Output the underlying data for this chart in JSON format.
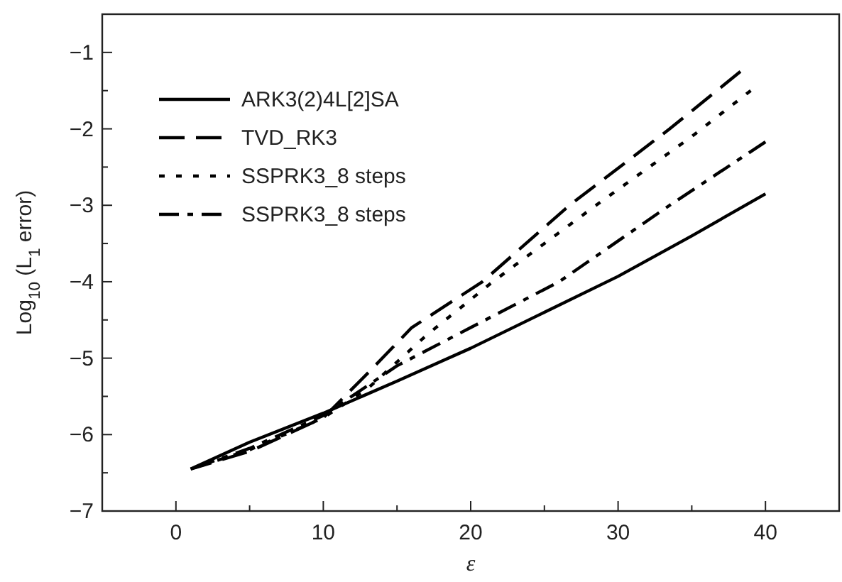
{
  "chart_data": {
    "type": "line",
    "xlabel": "ε",
    "ylabel": "Log$_{10}$ (L$_{1}$ error)",
    "xlim": [
      -5,
      45
    ],
    "ylim": [
      -7,
      -0.5
    ],
    "xticks": [
      0,
      {
        "value": 5,
        "label": null
      },
      10,
      {
        "value": 15,
        "label": null
      },
      20,
      {
        "value": 25,
        "label": null
      },
      30,
      {
        "value": 35,
        "label": null
      },
      40
    ],
    "yticks": [
      -7,
      {
        "value": -6.5,
        "label": null
      },
      -6,
      {
        "value": -5.5,
        "label": null
      },
      -5,
      {
        "value": -4.5,
        "label": null
      },
      -4,
      {
        "value": -3.5,
        "label": null
      },
      -3,
      {
        "value": -2.5,
        "label": null
      },
      -2,
      {
        "value": -1.5,
        "label": null
      },
      -1
    ],
    "grid": false,
    "legend": "top left",
    "series": [
      {
        "name": "ARK3(2)4L[2]SA",
        "color": "#000000",
        "line_style": "solid",
        "x": [
          1,
          5,
          10,
          15,
          20,
          25,
          30,
          35,
          40
        ],
        "values": [
          -6.45,
          -6.1,
          -5.72,
          -5.3,
          -4.87,
          -4.4,
          -3.93,
          -3.4,
          -2.85
        ]
      },
      {
        "name": "TVD_RK3",
        "color": "#000000",
        "line_style": "dashed",
        "x": [
          1,
          5,
          10,
          13,
          16,
          20.8,
          26.7,
          33.5,
          38.3
        ],
        "values": [
          -6.45,
          -6.22,
          -5.78,
          -5.2,
          -4.6,
          -4,
          -3,
          -2,
          -1.25
        ]
      },
      {
        "name": "SSPRK3_8 steps",
        "color": "#000000",
        "line_style": "dotted",
        "x": [
          1,
          5,
          10,
          13,
          17,
          21.5,
          28.5,
          35,
          39
        ],
        "values": [
          -6.45,
          -6.2,
          -5.78,
          -5.4,
          -4.7,
          -4,
          -3,
          -2.1,
          -1.5
        ]
      },
      {
        "name": "SSPRK3_8 steps",
        "color": "#000000",
        "line_style": "dashdot",
        "x": [
          1,
          5,
          10,
          15,
          20,
          26,
          33.5,
          40
        ],
        "values": [
          -6.45,
          -6.18,
          -5.75,
          -5.1,
          -4.6,
          -4,
          -3,
          -2.17
        ]
      }
    ]
  }
}
